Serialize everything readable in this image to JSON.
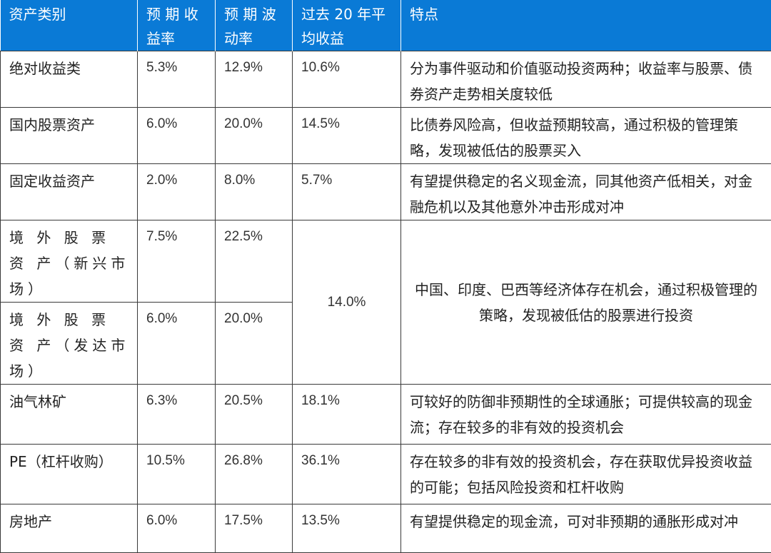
{
  "header": {
    "col1": "资产类别",
    "col2": "预 期 收 益率",
    "col3": "预 期 波 动率",
    "col4": "过去 20 年平均收益",
    "col5": "特点"
  },
  "rows": [
    {
      "category": "绝对收益类",
      "ret": "5.3%",
      "vol": "12.9%",
      "hist": "10.6%",
      "desc": "分为事件驱动和价值驱动投资两种；收益率与股票、债券资产走势相关度较低"
    },
    {
      "category": "国内股票资产",
      "ret": "6.0%",
      "vol": "20.0%",
      "hist": "14.5%",
      "desc": "比债券风险高，但收益预期较高，通过积极的管理策略，发现被低估的股票买入"
    },
    {
      "category": "固定收益资产",
      "ret": "2.0%",
      "vol": "8.0%",
      "hist": "5.7%",
      "desc": "有望提供稳定的名义现金流，同其他资产低相关，对金融危机以及其他意外冲击形成对冲"
    },
    {
      "category": "境 外 股 票 资 产（新兴市场）",
      "ret": "7.5%",
      "vol": "22.5%"
    },
    {
      "category": "境 外 股 票 资 产（发达市场）",
      "ret": "6.0%",
      "vol": "20.0%"
    },
    {
      "category": "油气林矿",
      "ret": "6.3%",
      "vol": "20.5%",
      "hist": "18.1%",
      "desc": "可较好的防御非预期性的全球通胀；可提供较高的现金流；存在较多的非有效的投资机会"
    },
    {
      "category": "PE（杠杆收购）",
      "ret": "10.5%",
      "vol": "26.8%",
      "hist": "36.1%",
      "desc": "存在较多的非有效的投资机会，存在获取优异投资收益的可能；包括风险投资和杠杆收购"
    },
    {
      "category": "房地产",
      "ret": "6.0%",
      "vol": "17.5%",
      "hist": "13.5%",
      "desc": "有望提供稳定的现金流，可对非预期的通胀形成对冲"
    }
  ],
  "overseas": {
    "hist": "14.0%",
    "desc": "中国、印度、巴西等经济体存在机会，通过积极管理的策略，发现被低估的股票进行投资"
  }
}
